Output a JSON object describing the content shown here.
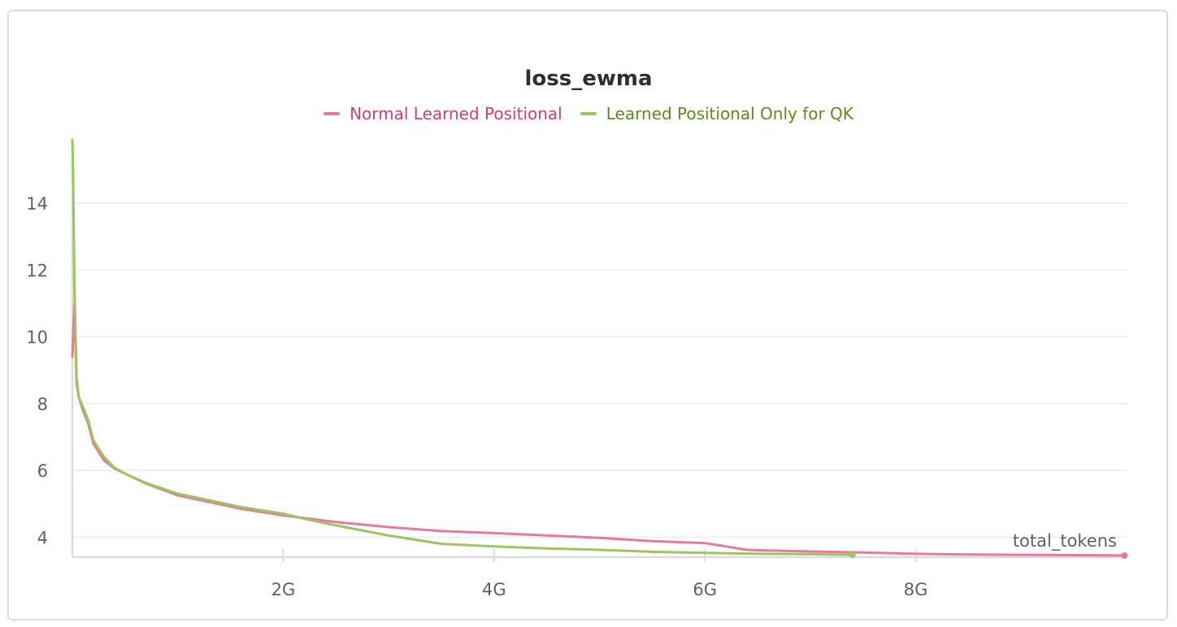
{
  "chart_data": {
    "type": "line",
    "title": "loss_ewma",
    "xlabel": "total_tokens",
    "ylabel": "",
    "xlim": [
      0,
      10000000000
    ],
    "ylim": [
      3.4,
      15.9
    ],
    "xticks": [
      2000000000,
      4000000000,
      6000000000,
      8000000000
    ],
    "xtick_labels": [
      "2G",
      "4G",
      "6G",
      "8G"
    ],
    "yticks": [
      4,
      6,
      8,
      10,
      12,
      14
    ],
    "ytick_labels": [
      "4",
      "6",
      "8",
      "10",
      "12",
      "14"
    ],
    "grid": true,
    "legend_position": "top-center",
    "series": [
      {
        "name": "Normal Learned Positional",
        "color": "#e8799e",
        "x": [
          0,
          20000000,
          40000000,
          60000000,
          100000000,
          150000000,
          200000000,
          300000000,
          400000000,
          500000000,
          700000000,
          1000000000,
          1300000000,
          1600000000,
          2000000000,
          2500000000,
          3000000000,
          3500000000,
          4000000000,
          4500000000,
          5000000000,
          5500000000,
          6000000000,
          6200000000,
          6400000000,
          6600000000,
          7000000000,
          7500000000,
          8000000000,
          8500000000,
          9000000000,
          9500000000,
          9980000000
        ],
        "y": [
          9.4,
          11.0,
          8.6,
          8.2,
          7.8,
          7.4,
          6.8,
          6.3,
          6.05,
          5.9,
          5.6,
          5.25,
          5.05,
          4.85,
          4.65,
          4.45,
          4.3,
          4.18,
          4.12,
          4.05,
          3.98,
          3.88,
          3.82,
          3.72,
          3.62,
          3.6,
          3.57,
          3.54,
          3.5,
          3.48,
          3.47,
          3.46,
          3.45
        ]
      },
      {
        "name": "Learned Positional Only for QK",
        "color": "#9bc55f",
        "x": [
          0,
          5000000,
          20000000,
          40000000,
          60000000,
          100000000,
          150000000,
          200000000,
          300000000,
          400000000,
          500000000,
          700000000,
          1000000000,
          1300000000,
          1600000000,
          2000000000,
          2200000000,
          2500000000,
          3000000000,
          3500000000,
          4000000000,
          4500000000,
          5000000000,
          5500000000,
          6000000000,
          6500000000,
          7000000000,
          7400000000
        ],
        "y": [
          15.9,
          15.5,
          11.5,
          8.8,
          8.2,
          7.9,
          7.5,
          6.9,
          6.4,
          6.08,
          5.9,
          5.62,
          5.3,
          5.1,
          4.9,
          4.7,
          4.55,
          4.35,
          4.05,
          3.8,
          3.72,
          3.66,
          3.62,
          3.56,
          3.53,
          3.5,
          3.49,
          3.47
        ]
      }
    ]
  }
}
